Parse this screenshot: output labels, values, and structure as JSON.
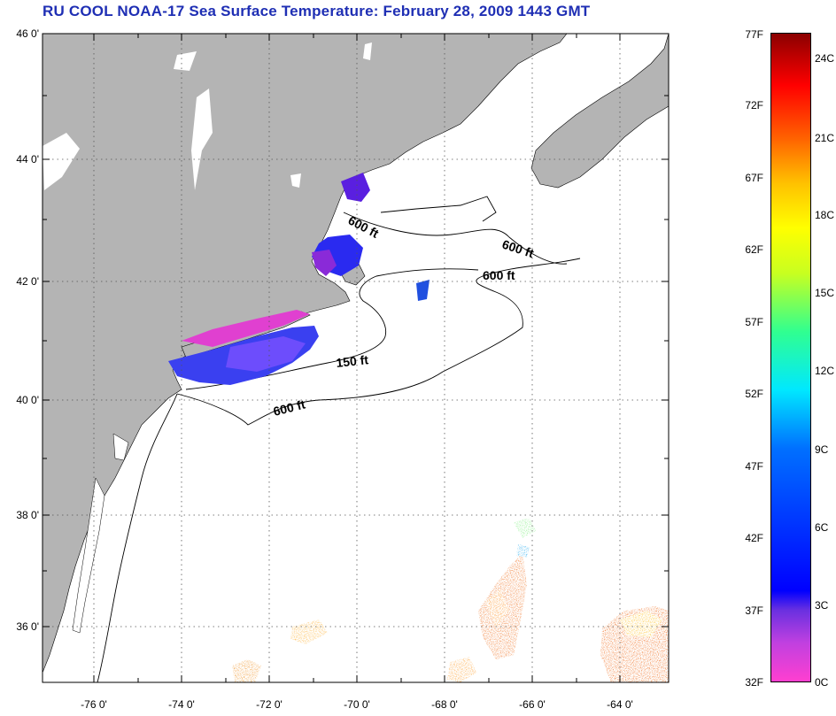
{
  "title": "RU COOL  NOAA-17  Sea Surface Temperature:  February 28, 2009 1443 GMT",
  "map": {
    "land_color": "#b4b4b4",
    "ocean_color": "#ffffff",
    "lat_labels": [
      "46 0'",
      "44 0'",
      "42 0'",
      "40 0'",
      "38 0'",
      "36 0'"
    ],
    "lon_labels": [
      "-76 0'",
      "-74 0'",
      "-72 0'",
      "-70 0'",
      "-68 0'",
      "-66 0'",
      "-64 0'"
    ],
    "contour_labels": [
      "600 ft",
      "600 ft",
      "600 ft",
      "150 ft",
      "600 ft"
    ]
  },
  "colorbar": {
    "f_labels": [
      "77F",
      "72F",
      "67F",
      "62F",
      "57F",
      "52F",
      "47F",
      "42F",
      "37F",
      "32F"
    ],
    "c_labels": [
      "24C",
      "21C",
      "18C",
      "15C",
      "12C",
      "9C",
      "6C",
      "3C",
      "0C"
    ]
  }
}
